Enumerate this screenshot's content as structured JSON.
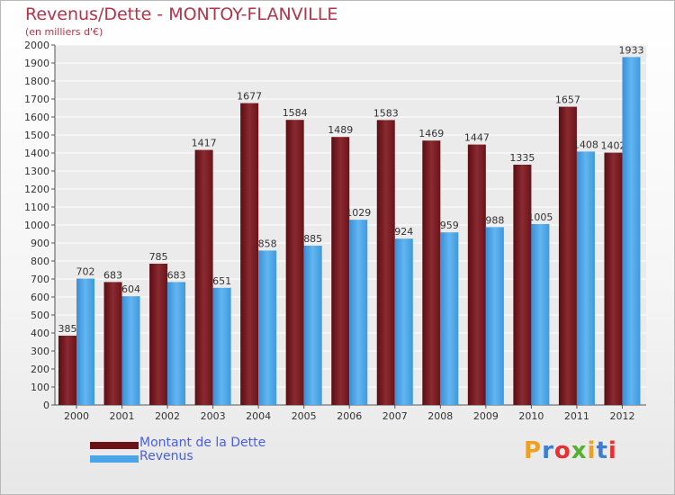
{
  "chart_data": {
    "type": "bar",
    "title": "Revenus/Dette - MONTOY-FLANVILLE",
    "subtitle": "(en milliers d'€)",
    "categories": [
      "2000",
      "2001",
      "2002",
      "2003",
      "2004",
      "2005",
      "2006",
      "2007",
      "2008",
      "2009",
      "2010",
      "2011",
      "2012"
    ],
    "series": [
      {
        "name": "Montant de la Dette",
        "color": "#7a1e24",
        "values": [
          385,
          683,
          785,
          1417,
          1677,
          1584,
          1489,
          1583,
          1469,
          1447,
          1335,
          1657,
          1402
        ]
      },
      {
        "name": "Revenus",
        "color": "#4aa5e8",
        "values": [
          702,
          604,
          683,
          651,
          858,
          885,
          1029,
          924,
          959,
          988,
          1005,
          1408,
          1933
        ]
      }
    ],
    "ylim": [
      0,
      2000
    ],
    "ytick_step": 100,
    "grid": true,
    "legend_position": "bottom-left"
  },
  "logo": {
    "text": "Proxiti",
    "letter_colors": [
      "#f0a020",
      "#3a7fd5",
      "#e83030",
      "#55b030",
      "#f0a020",
      "#3a7fd5",
      "#e83030"
    ]
  }
}
